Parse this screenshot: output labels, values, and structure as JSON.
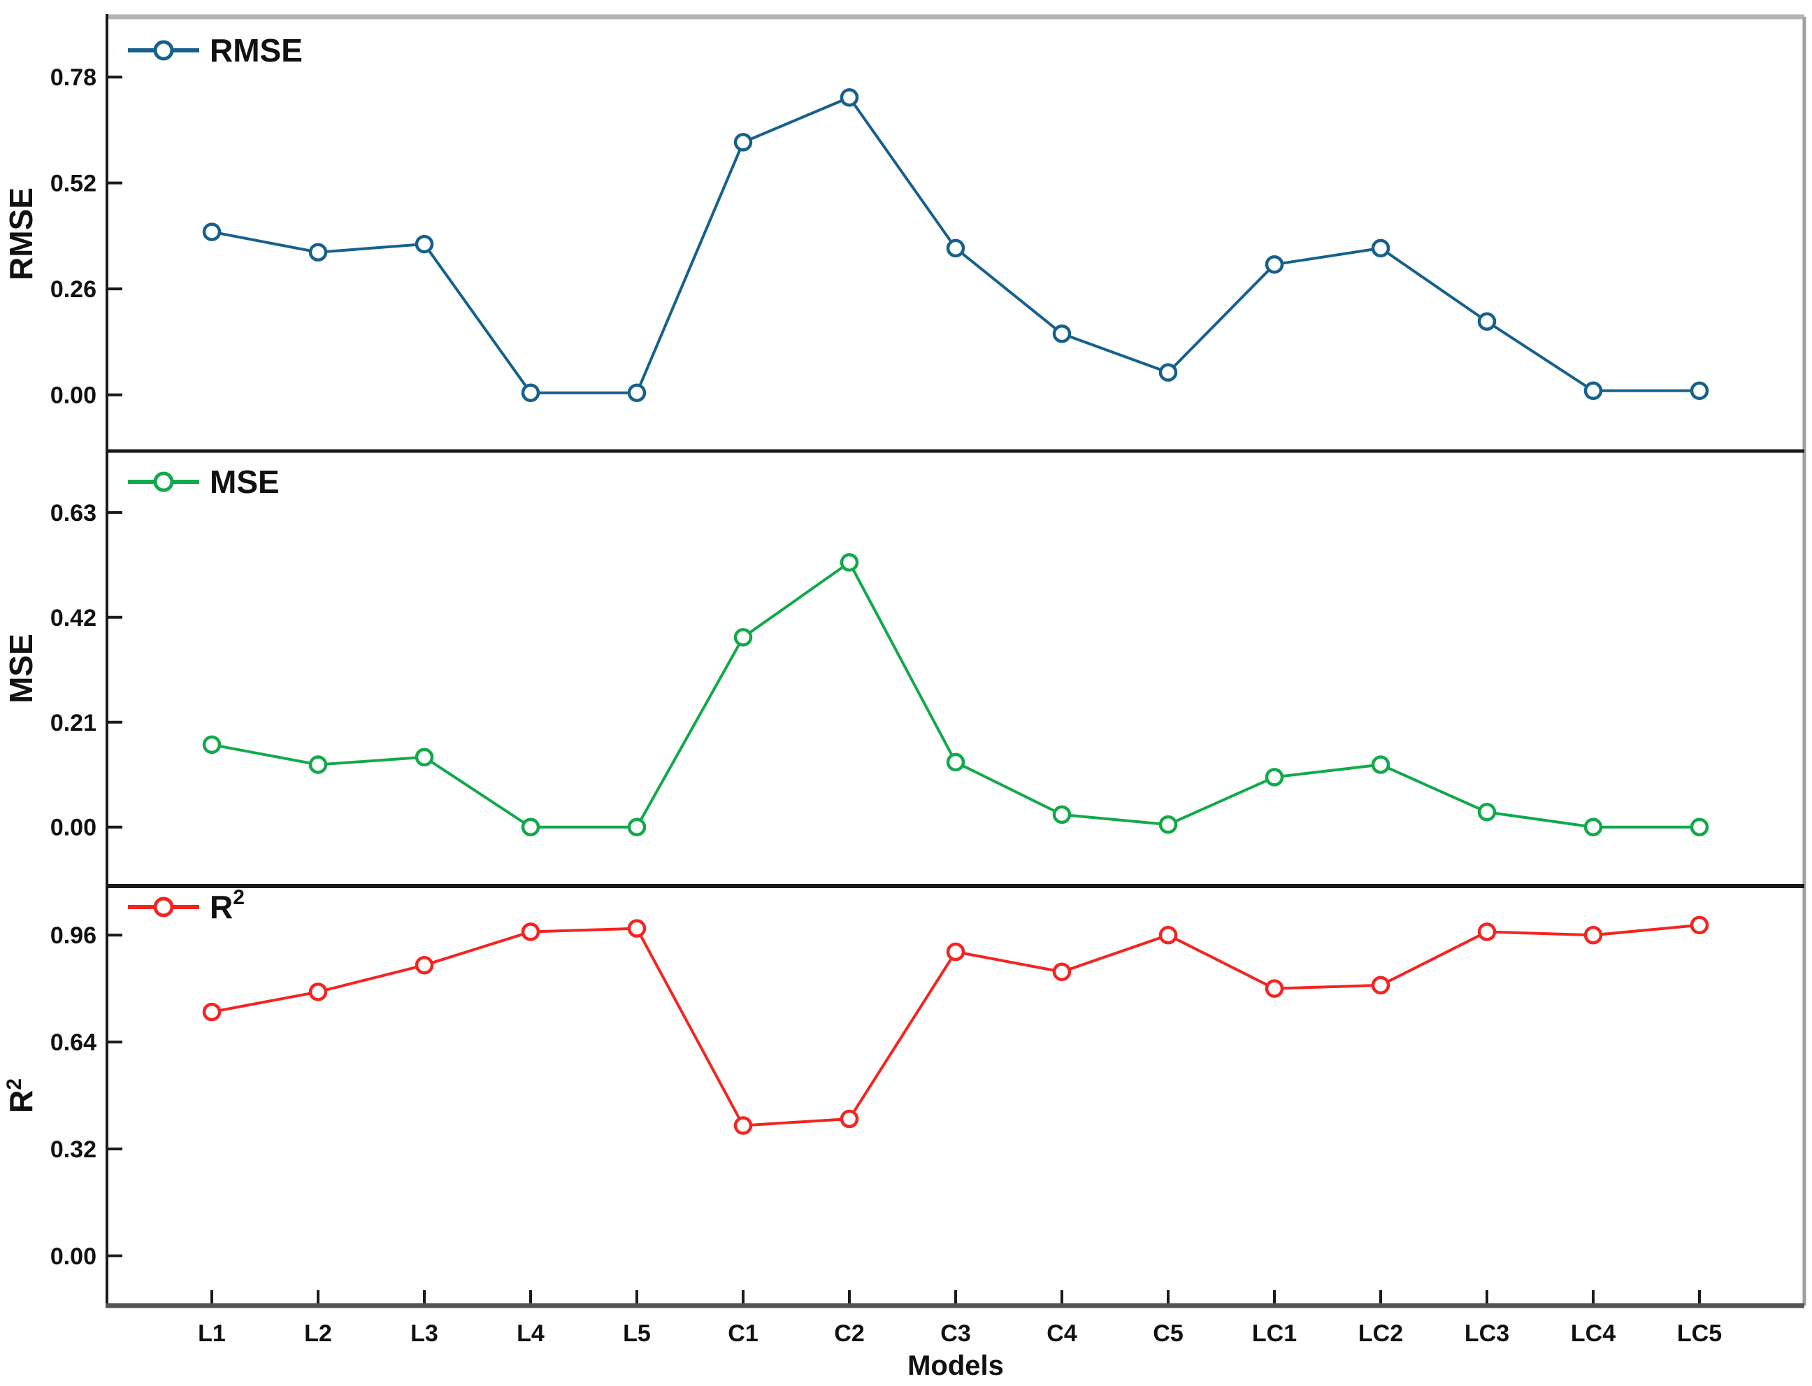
{
  "figure": {
    "xlabel": "Models",
    "background": "#ffffff",
    "border_top_color": "#b4b4b4",
    "border_right_color": "#9f9f9f",
    "axis_color": "#1a1a1a",
    "bottom_axis_color": "#545454"
  },
  "chart_data": [
    {
      "type": "line",
      "title": "RMSE",
      "ylabel": "RMSE",
      "legend": {
        "text": "RMSE",
        "sup": ""
      },
      "legend_position": "top-left",
      "grid": false,
      "color": "#16618c",
      "marker": "open-circle",
      "categories": [
        "L1",
        "L2",
        "L3",
        "L4",
        "L5",
        "C1",
        "C2",
        "C3",
        "C4",
        "C5",
        "LC1",
        "LC2",
        "LC3",
        "LC4",
        "LC5"
      ],
      "values": [
        0.4,
        0.35,
        0.37,
        0.005,
        0.005,
        0.62,
        0.73,
        0.36,
        0.15,
        0.055,
        0.32,
        0.36,
        0.18,
        0.01,
        0.01
      ],
      "yticks": [
        0.0,
        0.26,
        0.52,
        0.78
      ],
      "ytick_labels": [
        "0.00",
        "0.26",
        "0.52",
        "0.78"
      ],
      "ylim": [
        -0.138,
        0.928
      ],
      "xlabel": "Models"
    },
    {
      "type": "line",
      "title": "MSE",
      "ylabel": "MSE",
      "legend": {
        "text": "MSE",
        "sup": ""
      },
      "legend_position": "top-left",
      "grid": false,
      "color": "#12a94b",
      "marker": "open-circle",
      "categories": [
        "L1",
        "L2",
        "L3",
        "L4",
        "L5",
        "C1",
        "C2",
        "C3",
        "C4",
        "C5",
        "LC1",
        "LC2",
        "LC3",
        "LC4",
        "LC5"
      ],
      "values": [
        0.165,
        0.125,
        0.14,
        0.0,
        0.0,
        0.38,
        0.53,
        0.13,
        0.025,
        0.005,
        0.1,
        0.125,
        0.03,
        0.0,
        0.0
      ],
      "yticks": [
        0.0,
        0.21,
        0.42,
        0.63
      ],
      "ytick_labels": [
        "0.00",
        "0.21",
        "0.42",
        "0.63"
      ],
      "ylim": [
        -0.118,
        0.753
      ],
      "xlabel": "Models"
    },
    {
      "type": "line",
      "title": "R2",
      "ylabel": "R",
      "legend": {
        "text": "R",
        "sup": "2"
      },
      "legend_position": "top-left",
      "grid": false,
      "color": "#f42421",
      "marker": "open-circle",
      "categories": [
        "L1",
        "L2",
        "L3",
        "L4",
        "L5",
        "C1",
        "C2",
        "C3",
        "C4",
        "C5",
        "LC1",
        "LC2",
        "LC3",
        "LC4",
        "LC5"
      ],
      "values": [
        0.73,
        0.79,
        0.87,
        0.97,
        0.98,
        0.39,
        0.41,
        0.91,
        0.85,
        0.96,
        0.8,
        0.81,
        0.97,
        0.96,
        0.99
      ],
      "yticks": [
        0.0,
        0.32,
        0.64,
        0.96
      ],
      "ytick_labels": [
        "0.00",
        "0.32",
        "0.64",
        "0.96"
      ],
      "ylim": [
        -0.149,
        1.107
      ],
      "xlabel": "Models"
    }
  ]
}
